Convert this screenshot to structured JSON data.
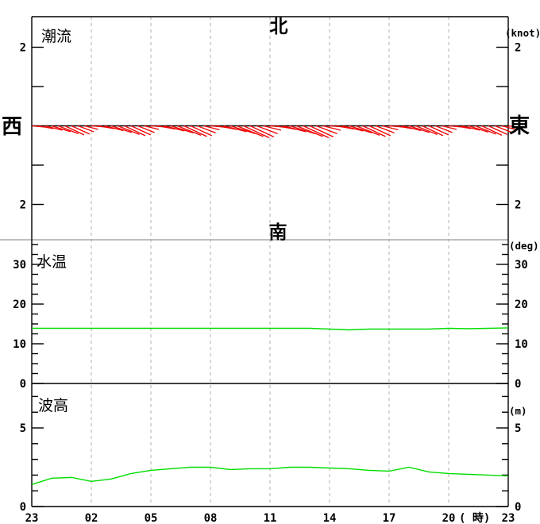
{
  "chart": {
    "titles": {
      "current": "潮流",
      "temp": "水温",
      "wave": "波高"
    },
    "units": {
      "current": "(knot)",
      "temp": "(deg)",
      "wave": "(m)"
    },
    "directions": {
      "north": "北",
      "south": "南",
      "west": "西",
      "east": "東"
    },
    "x_axis": {
      "labels": [
        "23",
        "02",
        "05",
        "08",
        "11",
        "14",
        "17",
        "20",
        "23"
      ],
      "step_hours": 3,
      "suffix": "( 時)"
    }
  },
  "colors": {
    "stick": "#ee0000",
    "line": "#00dd00",
    "grid": "#b0b0b0",
    "separator": "#a8a8a8",
    "axis": "#000000",
    "background": "#ffffff"
  },
  "chart_data": [
    {
      "type": "stickplot",
      "name": "tidal-current",
      "title": "潮流",
      "unit": "(knot)",
      "start_hour": 23,
      "interval_min": 20,
      "orientation": {
        "up": "北",
        "down": "南",
        "left": "西",
        "right": "東"
      },
      "ylim": [
        -2.9,
        2.78
      ],
      "yticks": [
        {
          "v": 2,
          "label": "2"
        },
        {
          "v": 1,
          "label": ""
        },
        {
          "v": -1,
          "label": ""
        },
        {
          "v": -2,
          "label": "2"
        }
      ],
      "u_east_knots": [
        0.32,
        0.38,
        0.44,
        0.48,
        0.51,
        0.49,
        0.46,
        0.4,
        0.34,
        0.35,
        0.41,
        0.48,
        0.52,
        0.55,
        0.53,
        0.5,
        0.43,
        0.37,
        0.38,
        0.45,
        0.52,
        0.57,
        0.6,
        0.58,
        0.54,
        0.47,
        0.4,
        0.43,
        0.5,
        0.58,
        0.64,
        0.67,
        0.65,
        0.6,
        0.53,
        0.45,
        0.43,
        0.5,
        0.58,
        0.64,
        0.67,
        0.65,
        0.6,
        0.53,
        0.45,
        0.38,
        0.45,
        0.52,
        0.57,
        0.6,
        0.58,
        0.54,
        0.47,
        0.4,
        0.35,
        0.41,
        0.48,
        0.52,
        0.55,
        0.53,
        0.5,
        0.43,
        0.37,
        0.33,
        0.4,
        0.46,
        0.5,
        0.53,
        0.51,
        0.48,
        0.41,
        0.35,
        0.38
      ],
      "v_north_knots": [
        -0.03,
        -0.07,
        -0.11,
        -0.15,
        -0.2,
        -0.23,
        -0.21,
        -0.15,
        -0.09,
        -0.03,
        -0.07,
        -0.12,
        -0.17,
        -0.22,
        -0.25,
        -0.23,
        -0.17,
        -0.09,
        -0.03,
        -0.08,
        -0.13,
        -0.18,
        -0.24,
        -0.27,
        -0.25,
        -0.18,
        -0.1,
        -0.04,
        -0.09,
        -0.15,
        -0.2,
        -0.27,
        -0.3,
        -0.28,
        -0.2,
        -0.11,
        -0.04,
        -0.09,
        -0.15,
        -0.2,
        -0.27,
        -0.3,
        -0.28,
        -0.2,
        -0.11,
        -0.03,
        -0.08,
        -0.13,
        -0.18,
        -0.24,
        -0.27,
        -0.25,
        -0.18,
        -0.1,
        -0.03,
        -0.07,
        -0.12,
        -0.17,
        -0.22,
        -0.25,
        -0.23,
        -0.17,
        -0.09,
        -0.03,
        -0.07,
        -0.11,
        -0.16,
        -0.21,
        -0.24,
        -0.22,
        -0.16,
        -0.09,
        -0.05
      ]
    },
    {
      "type": "line",
      "name": "water-temperature",
      "title": "水温",
      "unit": "(deg)",
      "start_hour": 23,
      "interval_min": 60,
      "ylim": [
        0,
        36.2
      ],
      "yticks_major": [
        0,
        10,
        20,
        30
      ],
      "yticks_minor": [
        2.5,
        5,
        7.5,
        12.5,
        15,
        17.5,
        22.5,
        25,
        27.5,
        32.5,
        35
      ],
      "values": [
        13.9,
        13.9,
        13.9,
        13.9,
        13.9,
        13.9,
        13.9,
        13.9,
        13.9,
        13.9,
        13.9,
        13.9,
        13.9,
        13.9,
        13.9,
        13.7,
        13.5,
        13.7,
        13.7,
        13.7,
        13.7,
        13.9,
        13.8,
        13.9,
        14.0
      ]
    },
    {
      "type": "line",
      "name": "wave-height",
      "title": "波高",
      "unit": "(m)",
      "start_hour": 23,
      "interval_min": 60,
      "ylim": [
        0,
        7.8
      ],
      "yticks_major": [
        0,
        5
      ],
      "yticks_minor": [
        1,
        2,
        3,
        4,
        6,
        7
      ],
      "values": [
        1.4,
        1.8,
        1.85,
        1.6,
        1.75,
        2.1,
        2.3,
        2.4,
        2.5,
        2.5,
        2.35,
        2.4,
        2.4,
        2.5,
        2.5,
        2.45,
        2.4,
        2.3,
        2.25,
        2.5,
        2.2,
        2.1,
        2.05,
        2.0,
        1.95
      ]
    }
  ]
}
